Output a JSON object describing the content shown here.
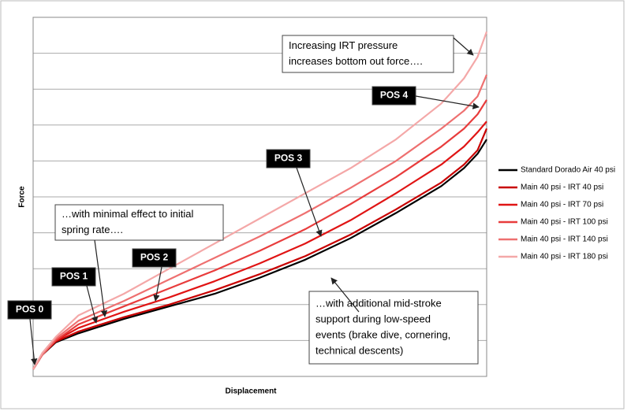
{
  "chart_data": {
    "type": "line",
    "x_label": "Displacement",
    "y_label": "Force",
    "x": [
      0,
      2,
      5,
      10,
      20,
      30,
      40,
      50,
      60,
      70,
      80,
      90,
      95,
      98,
      100
    ],
    "xlim": [
      0,
      100
    ],
    "ylim": [
      0,
      10
    ],
    "yticks": [
      1,
      2,
      3,
      4,
      5,
      6,
      7,
      8,
      9
    ],
    "show_tick_labels": false,
    "grid": true,
    "legend": "right",
    "series": [
      {
        "name": "Standard Dorado Air 40 psi",
        "color": "#000000",
        "values": [
          0.2,
          0.6,
          0.95,
          1.2,
          1.6,
          1.95,
          2.3,
          2.75,
          3.25,
          3.85,
          4.55,
          5.3,
          5.8,
          6.2,
          6.6
        ]
      },
      {
        "name": "Main 40 psi - IRT 40 psi",
        "color": "#c80000",
        "values": [
          0.2,
          0.6,
          0.97,
          1.25,
          1.65,
          2.0,
          2.4,
          2.85,
          3.35,
          3.95,
          4.65,
          5.4,
          5.9,
          6.3,
          6.9
        ]
      },
      {
        "name": "Main 40 psi - IRT 70 psi",
        "color": "#e01414",
        "values": [
          0.2,
          0.6,
          1.0,
          1.35,
          1.8,
          2.2,
          2.65,
          3.15,
          3.7,
          4.35,
          5.1,
          5.9,
          6.4,
          6.8,
          7.1
        ]
      },
      {
        "name": "Main 40 psi - IRT 100 psi",
        "color": "#e83c3c",
        "values": [
          0.2,
          0.6,
          1.0,
          1.45,
          1.95,
          2.45,
          2.95,
          3.5,
          4.1,
          4.8,
          5.55,
          6.4,
          6.9,
          7.3,
          7.7
        ]
      },
      {
        "name": "Main 40 psi - IRT 140 psi",
        "color": "#ee7070",
        "values": [
          0.2,
          0.6,
          1.05,
          1.55,
          2.1,
          2.7,
          3.3,
          3.9,
          4.55,
          5.25,
          6.0,
          6.9,
          7.4,
          7.8,
          8.4
        ]
      },
      {
        "name": "Main 40 psi - IRT 180 psi",
        "color": "#f4a8a8",
        "values": [
          0.2,
          0.65,
          1.1,
          1.7,
          2.3,
          3.0,
          3.7,
          4.4,
          5.1,
          5.8,
          6.6,
          7.6,
          8.3,
          8.9,
          9.6
        ]
      }
    ],
    "annotations": [
      {
        "lines": [
          "Increasing IRT pressure",
          "increases bottom out force…."
        ]
      },
      {
        "lines": [
          "POS 4"
        ]
      },
      {
        "lines": [
          "POS 3"
        ]
      },
      {
        "lines": [
          "…with minimal effect to initial",
          "spring rate…."
        ]
      },
      {
        "lines": [
          "POS 2"
        ]
      },
      {
        "lines": [
          "POS 1"
        ]
      },
      {
        "lines": [
          "POS 0"
        ]
      },
      {
        "lines": [
          "…with additional mid-stroke",
          "support during low-speed",
          "events (brake dive,  cornering,",
          "technical descents)"
        ]
      }
    ]
  }
}
